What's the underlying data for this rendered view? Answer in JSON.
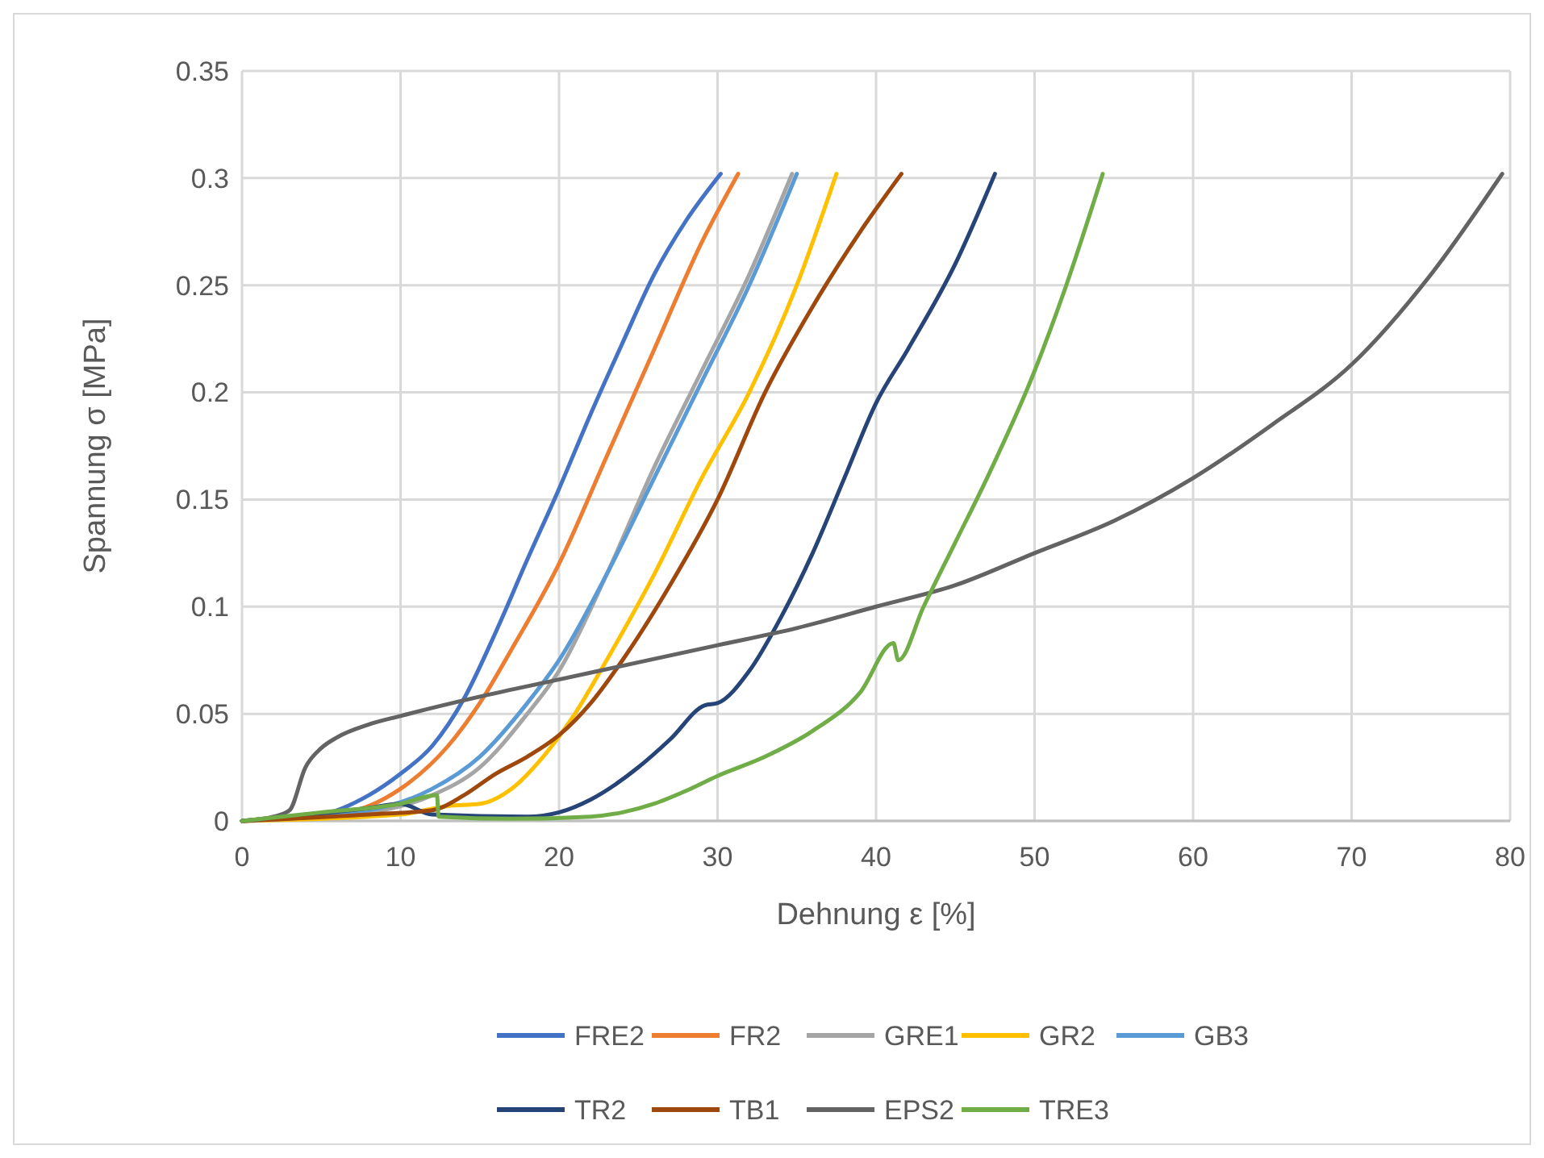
{
  "chart_data": {
    "type": "line",
    "xlabel": "Dehnung ε [%]",
    "ylabel": "Spannung σ [MPa]",
    "xlim": [
      0,
      80
    ],
    "xticks": [
      0,
      10,
      20,
      30,
      40,
      50,
      60,
      70,
      80
    ],
    "ylim": [
      0,
      0.35
    ],
    "yticks": [
      0,
      0.05,
      0.1,
      0.15,
      0.2,
      0.25,
      0.3,
      0.35
    ],
    "grid": true,
    "legend": "bottom",
    "marker": "none",
    "line_style": "solid",
    "series": [
      {
        "name": "FRE2",
        "color": "#4472c4",
        "x": [
          0,
          5,
          8,
          10,
          12,
          14,
          16,
          18,
          20,
          22,
          24,
          26,
          28,
          30.2
        ],
        "values": [
          0,
          0.003,
          0.012,
          0.022,
          0.035,
          0.057,
          0.088,
          0.122,
          0.155,
          0.19,
          0.223,
          0.255,
          0.28,
          0.302
        ]
      },
      {
        "name": "FR2",
        "color": "#ed7d31",
        "x": [
          0,
          6,
          10,
          13,
          15,
          17,
          20,
          23,
          26,
          29,
          31.3
        ],
        "values": [
          0,
          0.003,
          0.015,
          0.035,
          0.055,
          0.08,
          0.12,
          0.17,
          0.22,
          0.27,
          0.302
        ]
      },
      {
        "name": "GRE1",
        "color": "#a5a5a5",
        "x": [
          0,
          8,
          12,
          15,
          18,
          20,
          23,
          26,
          29,
          32,
          34.7
        ],
        "values": [
          0,
          0.004,
          0.012,
          0.025,
          0.05,
          0.07,
          0.115,
          0.165,
          0.21,
          0.255,
          0.302
        ]
      },
      {
        "name": "GR2",
        "color": "#ffc000",
        "x": [
          0,
          10,
          13,
          15,
          17,
          19,
          21,
          23,
          26,
          29,
          32,
          35,
          37.5
        ],
        "values": [
          0,
          0.003,
          0.007,
          0.008,
          0.015,
          0.03,
          0.05,
          0.075,
          0.115,
          0.16,
          0.2,
          0.25,
          0.302
        ]
      },
      {
        "name": "GB3",
        "color": "#5b9bd5",
        "x": [
          0,
          8,
          12,
          15,
          18,
          20,
          23,
          26,
          29,
          32,
          35
        ],
        "values": [
          0,
          0.005,
          0.015,
          0.03,
          0.055,
          0.075,
          0.115,
          0.16,
          0.205,
          0.25,
          0.302
        ]
      },
      {
        "name": "TR2",
        "color": "#264478",
        "x": [
          0,
          8,
          10,
          12,
          18,
          20,
          22,
          25,
          27,
          29.2,
          30,
          32,
          34,
          36,
          38,
          40,
          42,
          45,
          47.5
        ],
        "values": [
          0,
          0.006,
          0.008,
          0.003,
          0.002,
          0.004,
          0.01,
          0.025,
          0.038,
          0.054,
          0.055,
          0.07,
          0.095,
          0.125,
          0.16,
          0.195,
          0.22,
          0.26,
          0.302
        ]
      },
      {
        "name": "TB1",
        "color": "#9e480e",
        "x": [
          0,
          8,
          12,
          14,
          16,
          18,
          20,
          22,
          24,
          27,
          30,
          33,
          36,
          39,
          41.6
        ],
        "values": [
          0,
          0.003,
          0.005,
          0.012,
          0.022,
          0.03,
          0.04,
          0.055,
          0.075,
          0.11,
          0.15,
          0.2,
          0.24,
          0.275,
          0.302
        ]
      },
      {
        "name": "EPS2",
        "color": "#636363",
        "x": [
          0,
          2,
          3,
          4,
          5,
          6,
          8,
          10,
          15,
          20,
          25,
          30,
          35,
          40,
          45,
          50,
          55,
          60,
          65,
          70,
          75,
          79.5
        ],
        "values": [
          0,
          0.002,
          0.005,
          0.025,
          0.034,
          0.039,
          0.045,
          0.049,
          0.058,
          0.066,
          0.074,
          0.082,
          0.09,
          0.1,
          0.11,
          0.125,
          0.14,
          0.16,
          0.185,
          0.213,
          0.255,
          0.302
        ]
      },
      {
        "name": "TRE3",
        "color": "#70ad47",
        "x": [
          0,
          5,
          10,
          12.3,
          12.4,
          17,
          22,
          24,
          26,
          28,
          30,
          33,
          36,
          39,
          41.1,
          41.4,
          43,
          45,
          47,
          50,
          52,
          54.3
        ],
        "values": [
          0,
          0.004,
          0.008,
          0.012,
          0.002,
          0.001,
          0.002,
          0.004,
          0.008,
          0.014,
          0.021,
          0.03,
          0.042,
          0.06,
          0.083,
          0.075,
          0.1,
          0.13,
          0.16,
          0.21,
          0.25,
          0.302
        ]
      }
    ]
  }
}
